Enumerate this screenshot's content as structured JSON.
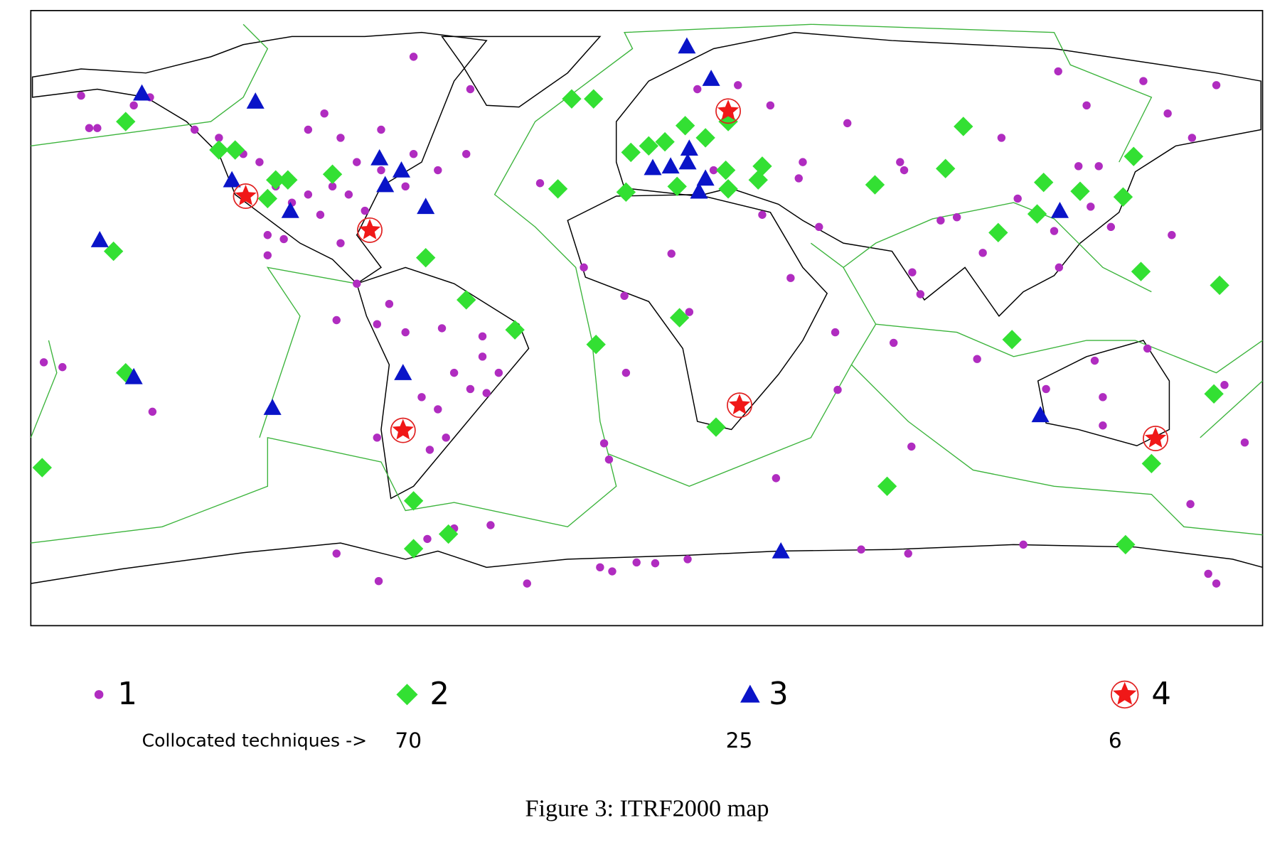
{
  "legend": {
    "items": [
      "1",
      "2",
      "3",
      "4"
    ],
    "collocated_label": "Collocated techniques ->",
    "counts": [
      70,
      25,
      6
    ]
  },
  "caption": "Figure 3: ITRF2000 map"
}
